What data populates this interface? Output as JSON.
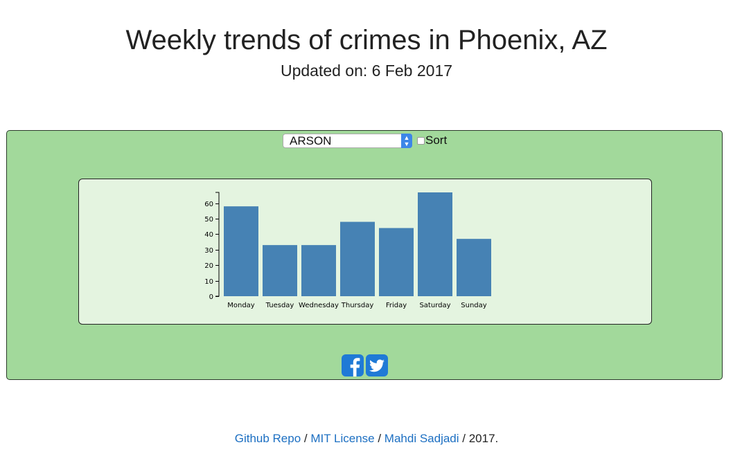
{
  "header": {
    "title": "Weekly trends of crimes in Phoenix, AZ",
    "subtitle": "Updated on: 6 Feb 2017"
  },
  "controls": {
    "selected_crime": "ARSON",
    "sort_label": "Sort",
    "sort_checked": false
  },
  "colors": {
    "outer_panel": "#a2d99b",
    "inner_panel": "#e4f4e0",
    "bar": "#4682b4",
    "link": "#1c6fc2",
    "social": "#1f7ad6"
  },
  "social": {
    "icons": [
      "facebook-icon",
      "twitter-icon"
    ]
  },
  "footer": {
    "links": [
      "Github Repo",
      "MIT License",
      "Mahdi Sadjadi"
    ],
    "separator": " / ",
    "tail": " / 2017."
  },
  "chart_data": {
    "type": "bar",
    "categories": [
      "Monday",
      "Tuesday",
      "Wednesday",
      "Thursday",
      "Friday",
      "Saturday",
      "Sunday"
    ],
    "values": [
      58,
      33,
      33,
      48,
      44,
      67,
      37
    ],
    "title": "",
    "xlabel": "",
    "ylabel": "",
    "ylim": [
      0,
      67
    ],
    "yticks": [
      0,
      10,
      20,
      30,
      40,
      50,
      60
    ],
    "grid": false
  }
}
